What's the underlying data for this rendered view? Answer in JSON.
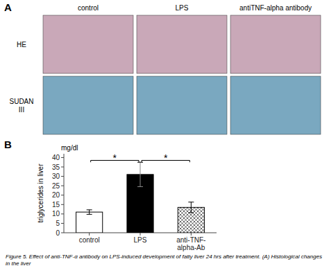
{
  "chart_data": {
    "type": "bar",
    "panel_labels": [
      "A",
      "B"
    ],
    "image_panel": {
      "col_labels": [
        "control",
        "LPS",
        "antiTNF-alpha antibody"
      ],
      "row_labels": [
        "HE",
        "SUDAN\nIII"
      ],
      "colors": [
        "#c9a8b8",
        "#7aa8c0"
      ]
    },
    "categories": [
      "control",
      "LPS",
      "anti-TNF-\nalpha-Ab"
    ],
    "values": [
      11.0,
      31.0,
      13.5
    ],
    "errors": [
      1.2,
      6.5,
      2.8
    ],
    "colors": [
      "white",
      "black",
      "hatched"
    ],
    "y_label": "triglycerides in liver",
    "unit_label": "mg/dl",
    "ylim": [
      0,
      42
    ],
    "yticks": [
      0,
      5,
      10,
      15,
      20,
      25,
      30,
      35,
      40
    ],
    "grid": false,
    "significance": [
      {
        "x1": 0,
        "x2": 1,
        "y": 38.5,
        "label": "*"
      },
      {
        "x1": 1,
        "x2": 2,
        "y": 38.5,
        "label": "*"
      }
    ],
    "caption": "Figure 5.  Effect of anti-TNF-α antibody on LPS-induced development of fatty liver 24 hrs after treatment. (A) Histological changes in the liver"
  }
}
